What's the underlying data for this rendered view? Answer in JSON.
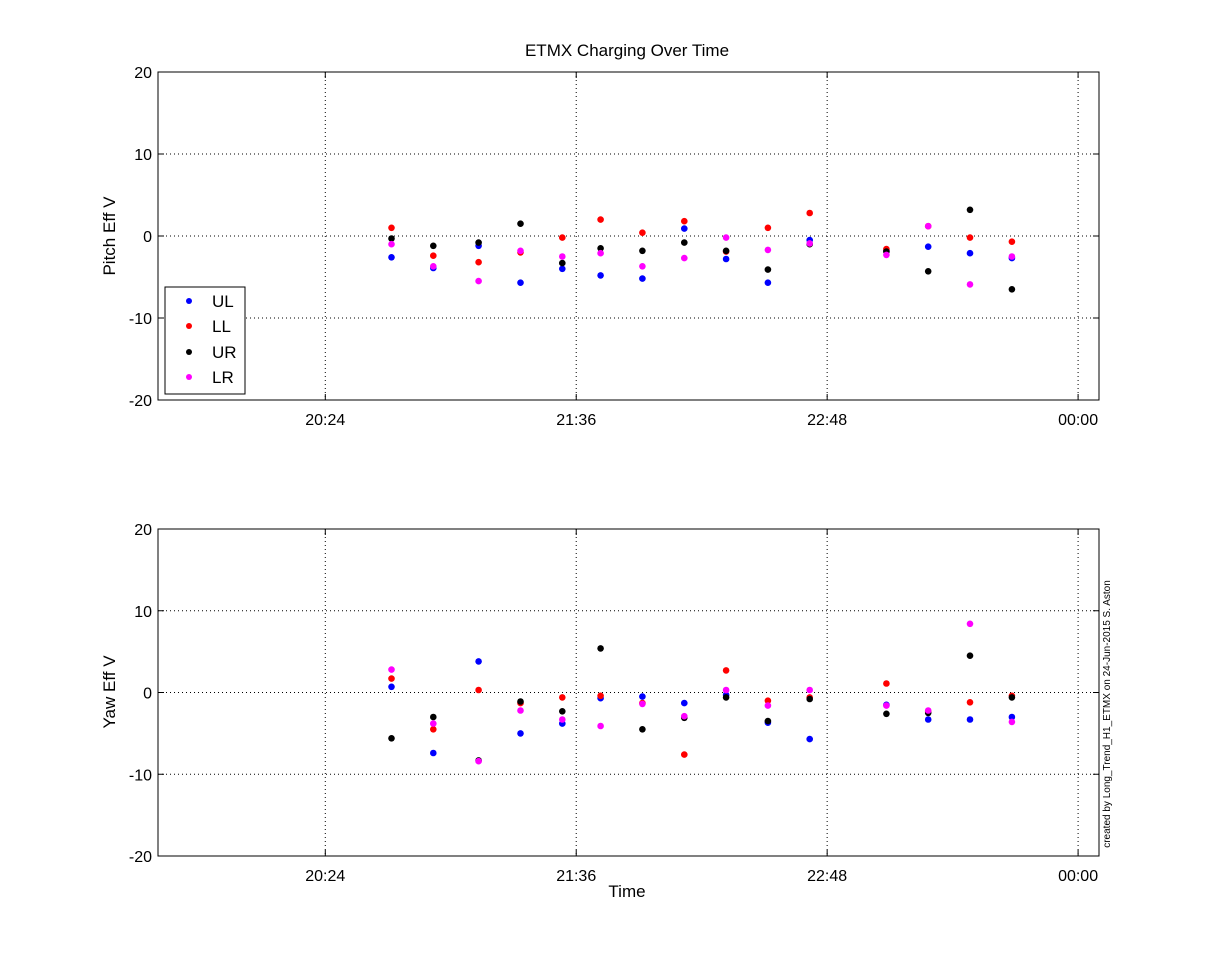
{
  "chart_data": [
    {
      "type": "scatter",
      "title": "ETMX Charging Over Time",
      "ylabel": "Pitch Eff V",
      "xlabel": "",
      "x_unit": "minutes since 00:00 (20:24 = 1224)",
      "xlim": [
        1176,
        1446
      ],
      "ylim": [
        -20,
        20
      ],
      "x_ticks": [
        {
          "value": 1224,
          "label": "20:24"
        },
        {
          "value": 1296,
          "label": "21:36"
        },
        {
          "value": 1368,
          "label": "22:48"
        },
        {
          "value": 1440,
          "label": "00:00"
        }
      ],
      "y_ticks": [
        {
          "value": 20,
          "label": "20"
        },
        {
          "value": 10,
          "label": "10"
        },
        {
          "value": 0,
          "label": "0"
        },
        {
          "value": -10,
          "label": "-10"
        },
        {
          "value": -20,
          "label": "-20"
        }
      ],
      "grid": true,
      "legend": "bottom-left",
      "x": [
        1243,
        1255,
        1268,
        1280,
        1292,
        1303,
        1315,
        1327,
        1339,
        1351,
        1363,
        1385,
        1397,
        1409,
        1421
      ],
      "series": [
        {
          "name": "UL",
          "color": "#0000ff",
          "values": [
            -2.6,
            -3.9,
            -1.2,
            -5.7,
            -4.0,
            -4.8,
            -5.2,
            0.9,
            -2.8,
            -5.7,
            -0.5,
            -1.8,
            -1.3,
            -2.1,
            -2.7
          ]
        },
        {
          "name": "LL",
          "color": "#ff0000",
          "values": [
            1.0,
            -2.4,
            -3.2,
            -2.0,
            -0.2,
            2.0,
            0.4,
            1.8,
            -1.9,
            1.0,
            2.8,
            -1.6,
            1.2,
            -0.2,
            -0.7
          ]
        },
        {
          "name": "UR",
          "color": "#000000",
          "values": [
            -0.3,
            -1.2,
            -0.8,
            1.5,
            -3.3,
            -1.5,
            -1.8,
            -0.8,
            -1.8,
            -4.1,
            -1.0,
            -1.9,
            -4.3,
            3.2,
            -6.5
          ]
        },
        {
          "name": "LR",
          "color": "#ff00ff",
          "values": [
            -1.0,
            -3.7,
            -5.5,
            -1.8,
            -2.5,
            -2.1,
            -3.7,
            -2.7,
            -0.2,
            -1.7,
            -0.9,
            -2.3,
            1.2,
            -5.9,
            -2.5
          ]
        }
      ]
    },
    {
      "type": "scatter",
      "title": "",
      "ylabel": "Yaw Eff V",
      "xlabel": "Time",
      "x_unit": "minutes since 00:00 (20:24 = 1224)",
      "xlim": [
        1176,
        1446
      ],
      "ylim": [
        -20,
        20
      ],
      "x_ticks": [
        {
          "value": 1224,
          "label": "20:24"
        },
        {
          "value": 1296,
          "label": "21:36"
        },
        {
          "value": 1368,
          "label": "22:48"
        },
        {
          "value": 1440,
          "label": "00:00"
        }
      ],
      "y_ticks": [
        {
          "value": 20,
          "label": "20"
        },
        {
          "value": 10,
          "label": "10"
        },
        {
          "value": 0,
          "label": "0"
        },
        {
          "value": -10,
          "label": "-10"
        },
        {
          "value": -20,
          "label": "-20"
        }
      ],
      "grid": true,
      "x": [
        1243,
        1255,
        1268,
        1280,
        1292,
        1303,
        1315,
        1327,
        1339,
        1351,
        1363,
        1385,
        1397,
        1409,
        1421
      ],
      "series": [
        {
          "name": "UL",
          "color": "#0000ff",
          "values": [
            0.7,
            -7.4,
            3.8,
            -5.0,
            -3.8,
            -0.7,
            -0.5,
            -1.3,
            -0.3,
            -3.7,
            -5.7,
            -1.5,
            -3.3,
            -3.3,
            -3.0
          ]
        },
        {
          "name": "LL",
          "color": "#ff0000",
          "values": [
            1.7,
            -4.5,
            0.3,
            -1.3,
            -0.6,
            -0.4,
            -1.3,
            -7.6,
            2.7,
            -1.0,
            -0.6,
            1.1,
            -2.3,
            -1.2,
            -0.4
          ]
        },
        {
          "name": "UR",
          "color": "#000000",
          "values": [
            -5.6,
            -3.0,
            -8.3,
            -1.1,
            -2.3,
            5.4,
            -4.5,
            -3.1,
            -0.6,
            -3.5,
            -0.8,
            -2.6,
            -2.5,
            4.5,
            -0.6
          ]
        },
        {
          "name": "LR",
          "color": "#ff00ff",
          "values": [
            2.8,
            -3.8,
            -8.4,
            -2.2,
            -3.3,
            -4.1,
            -1.4,
            -2.9,
            0.3,
            -1.6,
            0.3,
            -1.6,
            -2.2,
            8.4,
            -3.6
          ]
        }
      ]
    }
  ],
  "credit": "created by Long_Trend_H1_ETMX on 24-Jun-2015 S. Aston"
}
